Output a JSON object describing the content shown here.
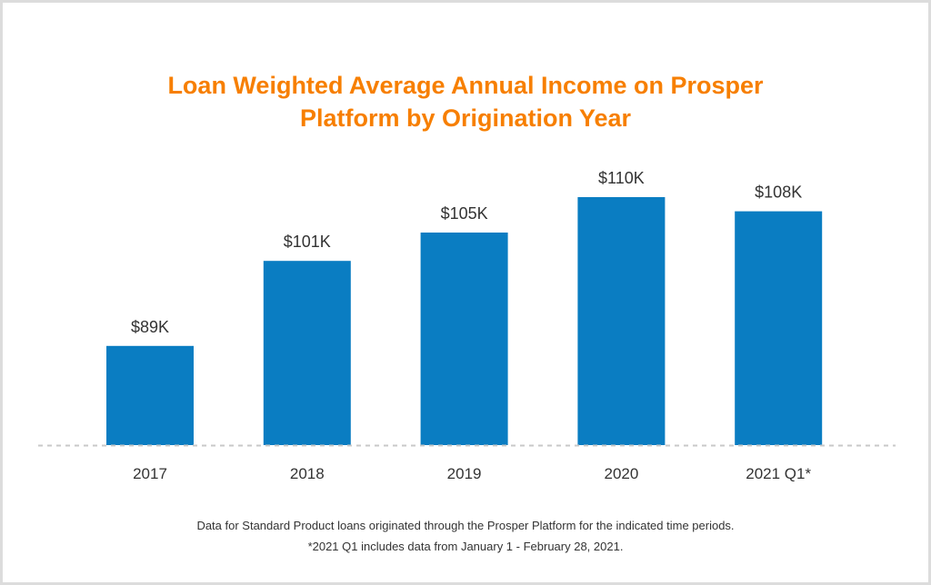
{
  "chart_data": {
    "type": "bar",
    "title_lines": [
      "Loan Weighted Average Annual Income on Prosper",
      "Platform by Origination Year"
    ],
    "categories": [
      "2017",
      "2018",
      "2019",
      "2020",
      "2021 Q1*"
    ],
    "values": [
      89,
      101,
      105,
      110,
      108
    ],
    "data_labels": [
      "$89K",
      "$101K",
      "$105K",
      "$110K",
      "$108K"
    ],
    "unit": "$K",
    "ylim": [
      75,
      125
    ],
    "grid": false,
    "bar_color": "#0a7dc2",
    "title_color": "#f77f00",
    "footnotes": [
      "Data for Standard Product loans originated through the Prosper Platform for the indicated time periods.",
      "*2021 Q1 includes data from January 1 - February 28, 2021."
    ]
  }
}
